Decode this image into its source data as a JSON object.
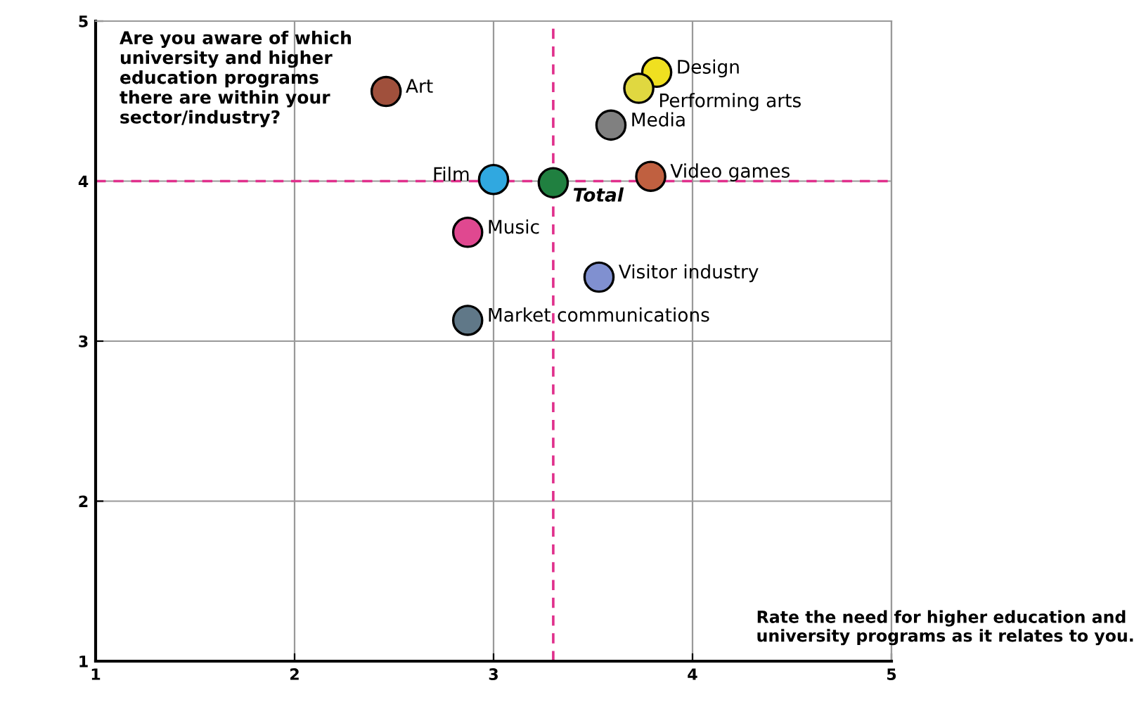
{
  "chart_data": {
    "type": "scatter",
    "xlabel": "Rate the need for higher education and\nuniversity programs as it relates to you.",
    "ylabel": "Are you aware of which\nuniversity and higher\neducation programs\nthere are within your\nsector/industry?",
    "xlim": [
      1,
      5
    ],
    "ylim": [
      1,
      5
    ],
    "xticks": [
      1,
      2,
      3,
      4,
      5
    ],
    "yticks": [
      1,
      2,
      3,
      4,
      5
    ],
    "grid": true,
    "marker": "circle",
    "ref_lines": [
      {
        "axis": "y",
        "value": 4,
        "color": "#e0308c",
        "line_style": "dashed"
      },
      {
        "axis": "x",
        "value": 3.3,
        "color": "#e0308c",
        "line_style": "dashed"
      }
    ],
    "series": [
      {
        "name": "Art",
        "color": "#a0503c",
        "x": [
          2.46
        ],
        "values": [
          4.56
        ]
      },
      {
        "name": "Design",
        "color": "#f0e020",
        "x": [
          3.82
        ],
        "values": [
          4.68
        ]
      },
      {
        "name": "Performing arts",
        "color": "#e0d840",
        "x": [
          3.73
        ],
        "values": [
          4.58
        ]
      },
      {
        "name": "Media",
        "color": "#808080",
        "x": [
          3.59
        ],
        "values": [
          4.35
        ]
      },
      {
        "name": "Video games",
        "color": "#c06040",
        "x": [
          3.79
        ],
        "values": [
          4.03
        ]
      },
      {
        "name": "Film",
        "color": "#30a8e0",
        "x": [
          3.0
        ],
        "values": [
          4.01
        ]
      },
      {
        "name": "Total",
        "color": "#208040",
        "x": [
          3.3
        ],
        "values": [
          3.99
        ]
      },
      {
        "name": "Music",
        "color": "#e04890",
        "x": [
          2.87
        ],
        "values": [
          3.68
        ]
      },
      {
        "name": "Visitor industry",
        "color": "#8090d0",
        "x": [
          3.53
        ],
        "values": [
          3.4
        ]
      },
      {
        "name": "Market communications",
        "color": "#607888",
        "x": [
          2.87
        ],
        "values": [
          3.13
        ]
      }
    ]
  }
}
